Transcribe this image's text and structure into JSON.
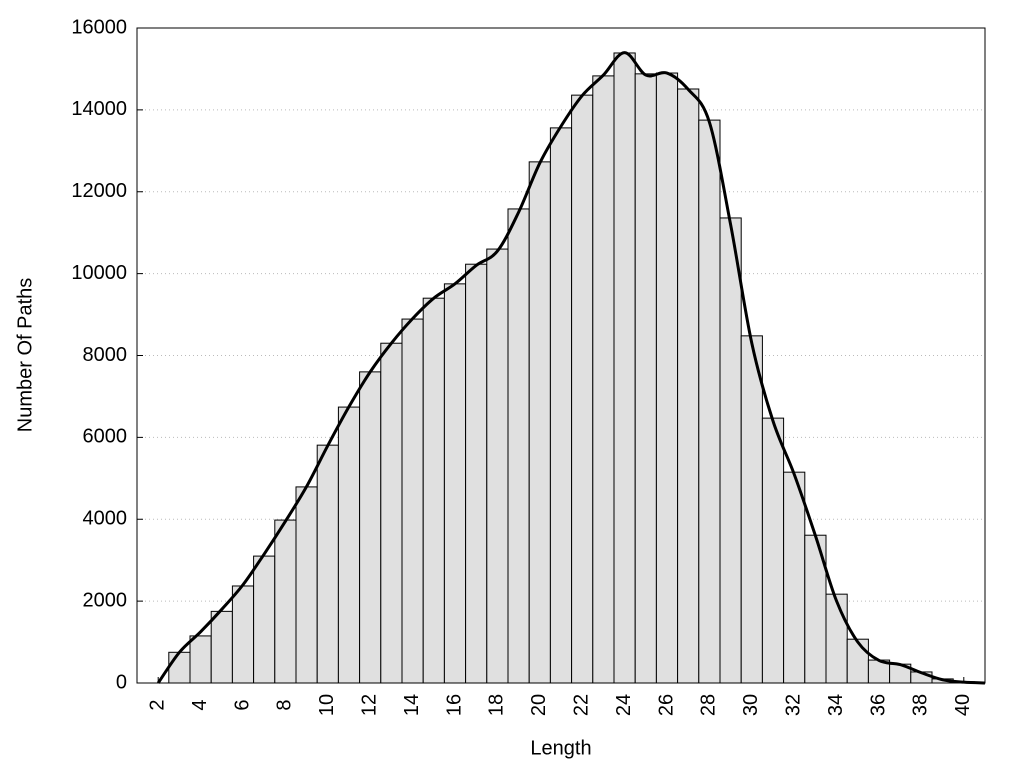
{
  "chart_data": {
    "type": "histogram",
    "xlabel": "Length",
    "ylabel": "Number Of Paths",
    "bins": [
      2.5,
      3.5,
      4.5,
      5.5,
      6.5,
      7.5,
      8.5,
      9.5,
      10.5,
      11.5,
      12.5,
      13.5,
      14.5,
      15.5,
      16.5,
      17.5,
      18.5,
      19.5,
      20.5,
      21.5,
      22.5,
      23.5,
      24.5,
      25.5,
      26.5,
      27.5,
      28.5,
      29.5,
      30.5,
      31.5,
      32.5,
      33.5,
      34.5,
      35.5,
      36.5,
      37.5,
      38.5,
      39.5,
      40.5
    ],
    "counts": [
      750,
      1150,
      1750,
      2370,
      3100,
      3980,
      4790,
      5810,
      6740,
      7600,
      8300,
      8890,
      9400,
      9750,
      10230,
      10600,
      11580,
      12730,
      13560,
      14360,
      14830,
      15390,
      14880,
      14900,
      14510,
      13750,
      11360,
      8480,
      6470,
      5150,
      3610,
      2170,
      1070,
      560,
      460,
      270,
      100,
      30
    ],
    "color": "#e0e0e0",
    "line": {
      "color": "#000000",
      "x": [
        2,
        3,
        4,
        5,
        6,
        7,
        8,
        9,
        10,
        11,
        12,
        13,
        14,
        15,
        16,
        17,
        18,
        19,
        20,
        21,
        22,
        23,
        24,
        25,
        26,
        27,
        28,
        29,
        30,
        31,
        32,
        33,
        34,
        35,
        36,
        37,
        38,
        39,
        40,
        41
      ],
      "values": [
        0,
        750,
        1250,
        1800,
        2400,
        3150,
        3950,
        4800,
        5800,
        6750,
        7600,
        8300,
        8900,
        9400,
        9750,
        10200,
        10550,
        11500,
        12700,
        13600,
        14350,
        14850,
        15400,
        14850,
        14900,
        14500,
        13700,
        11200,
        8300,
        6400,
        5100,
        3600,
        2000,
        1000,
        550,
        450,
        250,
        80,
        20,
        0
      ]
    },
    "xlim": [
      1,
      41
    ],
    "ylim": [
      0,
      16000
    ],
    "xticks": [
      2,
      4,
      6,
      8,
      10,
      12,
      14,
      16,
      18,
      20,
      22,
      24,
      26,
      28,
      30,
      32,
      34,
      36,
      38,
      40
    ],
    "yticks": [
      0,
      2000,
      4000,
      6000,
      8000,
      10000,
      12000,
      14000,
      16000
    ],
    "grid": true
  }
}
